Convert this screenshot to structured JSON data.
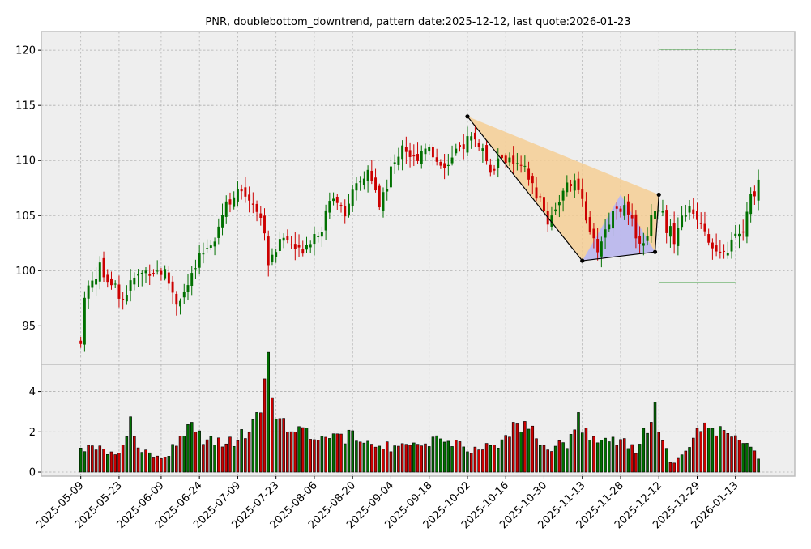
{
  "chart_data": {
    "type": "candlestick",
    "title": "PNR, doublebottom_downtrend, pattern date:2025-12-12, last quote:2026-01-23",
    "price_axis": {
      "ylim": [
        91.5,
        121.7
      ],
      "ticks": [
        95,
        100,
        105,
        110,
        115,
        120
      ]
    },
    "volume_axis": {
      "ylim": [
        -0.2,
        5.35
      ],
      "ticks": [
        0,
        2,
        4
      ]
    },
    "x_axis": {
      "ticks": [
        "2025-05-09",
        "2025-05-23",
        "2025-06-09",
        "2025-06-24",
        "2025-07-09",
        "2025-07-23",
        "2025-08-06",
        "2025-08-20",
        "2025-09-04",
        "2025-09-18",
        "2025-10-02",
        "2025-10-16",
        "2025-10-30",
        "2025-11-13",
        "2025-11-28",
        "2025-12-12",
        "2025-12-29",
        "2026-01-13"
      ]
    },
    "colors": {
      "up": "#007000",
      "down": "#cc0000",
      "frame_bg": "#eeeeee",
      "pattern_fill": "#f5cc8f",
      "bottom_fill": "#b8b8f5",
      "level_line": "#008000"
    },
    "price_anchors": [
      [
        0,
        93.5
      ],
      [
        1,
        98.0
      ],
      [
        5,
        100.2
      ],
      [
        8,
        99.0
      ],
      [
        11,
        97.5
      ],
      [
        14,
        99.3
      ],
      [
        18,
        100.1
      ],
      [
        22,
        99.8
      ],
      [
        25,
        97.2
      ],
      [
        28,
        98.5
      ],
      [
        31,
        101.0
      ],
      [
        35,
        103.2
      ],
      [
        38,
        106.3
      ],
      [
        41,
        107.0
      ],
      [
        44,
        106.8
      ],
      [
        47,
        105.0
      ],
      [
        49,
        101.0
      ],
      [
        53,
        103.0
      ],
      [
        57,
        101.7
      ],
      [
        60,
        103.0
      ],
      [
        63,
        104.0
      ],
      [
        66,
        107.0
      ],
      [
        69,
        105.5
      ],
      [
        72,
        107.5
      ],
      [
        75,
        109.0
      ],
      [
        78,
        106.0
      ],
      [
        81,
        109.0
      ],
      [
        84,
        111.5
      ],
      [
        87,
        110.0
      ],
      [
        90,
        111.5
      ],
      [
        93,
        110.0
      ],
      [
        96,
        109.5
      ],
      [
        99,
        111.0
      ],
      [
        101,
        112.0
      ],
      [
        103,
        112.0
      ],
      [
        105,
        111.0
      ],
      [
        107,
        108.5
      ],
      [
        110,
        110.5
      ],
      [
        113,
        109.5
      ],
      [
        116,
        109.0
      ],
      [
        119,
        107.0
      ],
      [
        122,
        104.5
      ],
      [
        125,
        106.5
      ],
      [
        128,
        108.0
      ],
      [
        131,
        107.0
      ],
      [
        133,
        103.0
      ],
      [
        135,
        102.0
      ],
      [
        138,
        104.5
      ],
      [
        140,
        106.0
      ],
      [
        142,
        105.5
      ],
      [
        145,
        103.5
      ],
      [
        147,
        102.2
      ],
      [
        149,
        105.0
      ],
      [
        151,
        106.0
      ],
      [
        153,
        104.0
      ],
      [
        155,
        103.0
      ],
      [
        158,
        105.5
      ],
      [
        161,
        105.0
      ],
      [
        163,
        104.0
      ],
      [
        165,
        102.0
      ],
      [
        167,
        101.0
      ],
      [
        169,
        102.0
      ],
      [
        171,
        103.0
      ],
      [
        173,
        103.5
      ],
      [
        175,
        106.5
      ],
      [
        177,
        108.0
      ]
    ],
    "volume_anchors": [
      [
        0,
        1.2
      ],
      [
        4,
        1.3
      ],
      [
        10,
        0.8
      ],
      [
        13,
        2.5
      ],
      [
        16,
        1.0
      ],
      [
        22,
        0.7
      ],
      [
        28,
        2.4
      ],
      [
        33,
        1.5
      ],
      [
        40,
        1.5
      ],
      [
        46,
        2.5
      ],
      [
        49,
        5.4
      ],
      [
        50,
        3.2
      ],
      [
        51,
        2.8
      ],
      [
        58,
        2.1
      ],
      [
        65,
        1.7
      ],
      [
        74,
        1.8
      ],
      [
        82,
        1.1
      ],
      [
        90,
        1.5
      ],
      [
        96,
        1.6
      ],
      [
        102,
        1.1
      ],
      [
        106,
        1.2
      ],
      [
        110,
        1.5
      ],
      [
        113,
        2.3
      ],
      [
        116,
        2.4
      ],
      [
        121,
        1.2
      ],
      [
        127,
        1.4
      ],
      [
        130,
        2.8
      ],
      [
        132,
        2.0
      ],
      [
        137,
        1.5
      ],
      [
        140,
        1.6
      ],
      [
        145,
        1.1
      ],
      [
        150,
        3.0
      ],
      [
        154,
        0.4
      ],
      [
        158,
        0.9
      ],
      [
        161,
        2.1
      ],
      [
        163,
        2.9
      ],
      [
        166,
        1.7
      ],
      [
        168,
        2.5
      ],
      [
        172,
        1.6
      ],
      [
        177,
        0.8
      ]
    ],
    "pattern": {
      "points": [
        {
          "date": "2025-10-02",
          "price": 114.0
        },
        {
          "date": "2025-11-13",
          "price": 100.9
        },
        {
          "date": "2025-11-28",
          "price": 106.9
        },
        {
          "date": "2025-12-10",
          "price": 101.7
        },
        {
          "date": "2025-12-12",
          "price": 106.9
        }
      ],
      "levels": [
        120.1,
        98.9
      ],
      "level_span": [
        "2025-12-12",
        "2026-01-13"
      ]
    }
  }
}
